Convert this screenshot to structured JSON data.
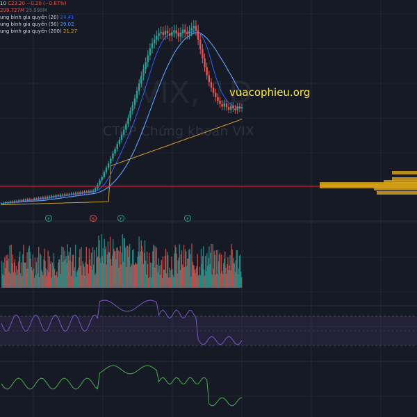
{
  "legend": {
    "line1_prefix": "10",
    "line1_close": "C23.20",
    "line1_change": "−0.20 (−0.87%)",
    "volume": "299.727M",
    "volume_muted": "25.999M",
    "ma20_label": "ung bình gia quyền (20)",
    "ma20_value": "24.41",
    "ma50_label": "ung bình gia quyền (50)",
    "ma50_value": "29.02",
    "ma200_label": "ung bình gia quyền (200)",
    "ma200_value": "21.27"
  },
  "watermark_symbol": "VIX, 1D",
  "watermark_name": "CTCP Chứng khoán VIX",
  "site": "vuacophieu.org",
  "colors": {
    "up": "#26a69a",
    "down": "#ef5350",
    "ma20": "#2962ff",
    "ma50": "#5b9cf6",
    "ma200": "#d4a22a",
    "rsi": "#7e57c2",
    "osc": "#4caf50",
    "hline": "#ff1a1a",
    "vp": "#d4a017",
    "vol_up": "#26a69a",
    "vol_down": "#ef5350"
  },
  "markers": [
    "F",
    "S",
    "F",
    "F"
  ],
  "chart_data": {
    "type": "line",
    "title": "",
    "close_series": [
      7.8,
      7.9,
      8.0,
      7.9,
      8.1,
      8.0,
      8.2,
      8.1,
      8.3,
      8.2,
      8.4,
      8.3,
      8.5,
      8.4,
      8.3,
      8.6,
      8.5,
      8.7,
      8.6,
      8.8,
      8.7,
      8.9,
      8.8,
      9.0,
      8.9,
      9.1,
      9.0,
      9.2,
      9.1,
      9.3,
      9.2,
      9.3,
      9.4,
      9.3,
      9.5,
      9.4,
      9.6,
      9.5,
      9.7,
      9.6,
      9.8,
      9.7,
      9.9,
      10.2,
      10.8,
      11.5,
      12.0,
      12.8,
      13.5,
      14.2,
      15.0,
      15.8,
      16.5,
      17.3,
      18.0,
      18.8,
      19.6,
      20.5,
      21.5,
      22.6,
      23.5,
      24.6,
      25.8,
      27.0,
      28.2,
      29.3,
      30.4,
      31.5,
      32.6,
      33.4,
      34.0,
      34.6,
      35.0,
      35.2,
      34.8,
      35.4,
      35.0,
      34.6,
      35.2,
      35.5,
      35.0,
      34.5,
      35.1,
      35.6,
      35.2,
      34.9,
      35.4,
      35.8,
      36.2,
      35.5,
      34.0,
      32.5,
      31.0,
      29.6,
      28.3,
      27.2,
      26.3,
      25.5,
      24.8,
      24.2,
      23.7,
      23.3,
      23.8,
      23.2,
      22.8,
      23.4,
      23.0,
      22.7,
      23.3,
      23.0,
      23.2
    ],
    "ma20_last": 24.41,
    "ma50_last": 29.02,
    "ma200_last": 21.27,
    "last_close": 23.2,
    "change": -0.2,
    "change_pct": -0.87
  }
}
